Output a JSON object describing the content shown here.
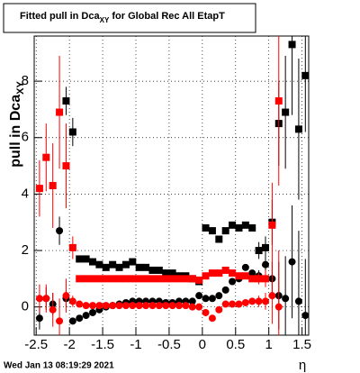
{
  "chart_data": {
    "type": "scatter",
    "title": "Fitted pull in Dca",
    "title_subscript": "XY",
    "title_rest": " for Global Rec All EtapT",
    "y_label": "pull in Dca",
    "y_label_subscript": "XY",
    "x_label": "η",
    "footer": "Wed Jan 13 08:19:29 2021",
    "xlim": [
      -2.53,
      1.6
    ],
    "ylim": [
      -1,
      9.6
    ],
    "xticks": [
      -2.5,
      -2,
      -1.5,
      -1,
      -0.5,
      0,
      0.5,
      1,
      1.5
    ],
    "yticks": [
      0,
      2,
      4,
      6,
      8
    ],
    "grid": true,
    "x": [
      -2.45,
      -2.35,
      -2.25,
      -2.15,
      -2.05,
      -1.95,
      -1.85,
      -1.75,
      -1.65,
      -1.55,
      -1.45,
      -1.35,
      -1.25,
      -1.15,
      -1.05,
      -0.95,
      -0.85,
      -0.75,
      -0.65,
      -0.55,
      -0.45,
      -0.35,
      -0.25,
      -0.15,
      -0.05,
      0.05,
      0.15,
      0.25,
      0.35,
      0.45,
      0.55,
      0.65,
      0.75,
      0.85,
      0.95,
      1.05,
      1.15,
      1.25,
      1.35,
      1.45,
      1.55
    ],
    "series": [
      {
        "marker": "square",
        "color": "#000000",
        "values": [
          null,
          null,
          null,
          null,
          7.3,
          6.2,
          1.7,
          1.7,
          1.6,
          1.5,
          1.4,
          1.5,
          1.4,
          1.5,
          1.6,
          1.4,
          1.4,
          1.3,
          1.3,
          1.2,
          1.2,
          1.1,
          1.1,
          1.0,
          0.9,
          2.8,
          2.7,
          2.4,
          2.7,
          2.9,
          2.8,
          2.9,
          2.8,
          2.0,
          2.1,
          3.0,
          6.5,
          6.9,
          9.3,
          6.3,
          8.2
        ],
        "errors": [
          null,
          null,
          null,
          null,
          0.5,
          0.5,
          0.1,
          0.1,
          0.1,
          0.1,
          0.1,
          0.1,
          0.1,
          0.1,
          0.1,
          0.1,
          0.1,
          0.1,
          0.1,
          0.1,
          0.1,
          0.1,
          0.1,
          0.1,
          0.1,
          0.1,
          0.1,
          0.1,
          0.1,
          0.1,
          0.1,
          0.1,
          0.1,
          0.3,
          0.4,
          0.8,
          1.5,
          2.0,
          2.5,
          2.5,
          2.0
        ]
      },
      {
        "marker": "circle",
        "color": "#000000",
        "values": [
          -0.4,
          0.3,
          0.1,
          2.7,
          0.3,
          -0.5,
          -0.4,
          -0.3,
          -0.2,
          -0.1,
          0.0,
          0.05,
          0.1,
          0.15,
          0.2,
          0.2,
          0.2,
          0.2,
          0.2,
          0.15,
          0.15,
          0.2,
          0.2,
          0.2,
          0.4,
          0.3,
          0.3,
          0.4,
          0.6,
          0.9,
          1.0,
          1.4,
          1.2,
          1.1,
          1.5,
          1.0,
          0.4,
          0.3,
          1.6,
          0.2,
          -0.3
        ],
        "errors": [
          0.4,
          0.4,
          0.4,
          0.5,
          0.3,
          0.1,
          0.1,
          0.1,
          0.1,
          0.1,
          0.1,
          0.1,
          0.1,
          0.1,
          0.1,
          0.1,
          0.1,
          0.1,
          0.1,
          0.1,
          0.1,
          0.1,
          0.1,
          0.1,
          0.1,
          0.1,
          0.1,
          0.1,
          0.1,
          0.1,
          0.1,
          0.1,
          0.1,
          0.2,
          0.3,
          0.6,
          1.2,
          1.5,
          2.0,
          2.5,
          2.0
        ]
      },
      {
        "marker": "square",
        "color": "#ff0000",
        "values": [
          4.2,
          5.3,
          4.3,
          6.9,
          5.0,
          2.1,
          1.0,
          1.0,
          1.0,
          1.0,
          1.0,
          1.0,
          1.0,
          1.0,
          1.0,
          1.0,
          1.0,
          1.0,
          1.0,
          1.0,
          1.0,
          1.0,
          1.0,
          1.0,
          0.95,
          1.1,
          1.2,
          1.2,
          1.3,
          1.2,
          1.1,
          1.1,
          1.0,
          1.0,
          1.0,
          2.9,
          7.3,
          null,
          null,
          null,
          null
        ],
        "errors": [
          1.0,
          1.2,
          1.5,
          2.0,
          1.5,
          0.4,
          0.1,
          0.1,
          0.1,
          0.1,
          0.1,
          0.1,
          0.1,
          0.1,
          0.1,
          0.1,
          0.1,
          0.1,
          0.1,
          0.1,
          0.1,
          0.1,
          0.1,
          0.1,
          0.1,
          0.1,
          0.1,
          0.1,
          0.1,
          0.1,
          0.1,
          0.1,
          0.1,
          0.2,
          0.3,
          1.5,
          3.0,
          null,
          null,
          null,
          null
        ]
      },
      {
        "marker": "circle",
        "color": "#ff0000",
        "values": [
          0.3,
          0.3,
          -0.1,
          -0.5,
          0.4,
          0.2,
          0.1,
          0.05,
          0.05,
          0.05,
          0.05,
          0.05,
          0.05,
          0.05,
          0.05,
          0.05,
          0.05,
          0.05,
          0.05,
          0.05,
          0.05,
          0.05,
          0.05,
          0.0,
          0.0,
          -0.2,
          -0.4,
          -0.1,
          0.1,
          0.1,
          0.1,
          0.15,
          0.2,
          0.2,
          0.2,
          0.4,
          0.0,
          null,
          null,
          null,
          null
        ],
        "errors": [
          0.5,
          0.5,
          0.6,
          0.8,
          0.6,
          0.2,
          0.1,
          0.1,
          0.1,
          0.1,
          0.1,
          0.1,
          0.1,
          0.1,
          0.1,
          0.1,
          0.1,
          0.1,
          0.1,
          0.1,
          0.1,
          0.1,
          0.1,
          0.1,
          0.1,
          0.1,
          0.1,
          0.1,
          0.1,
          0.1,
          0.1,
          0.1,
          0.1,
          0.2,
          0.3,
          1.0,
          2.0,
          null,
          null,
          null,
          null
        ]
      }
    ]
  }
}
